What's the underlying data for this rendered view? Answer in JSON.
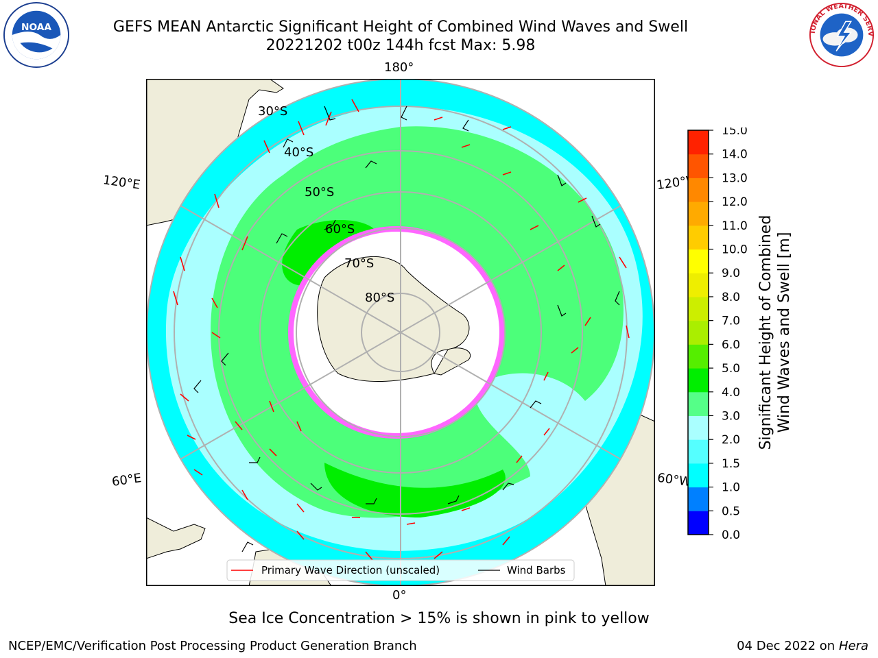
{
  "title": {
    "line1": "GEFS MEAN Antarctic Significant Height of Combined Wind Waves and Swell",
    "line2": "20221202 t00z 144h fcst   Max: 5.98"
  },
  "logos": {
    "noaa": {
      "icon": "noaa-logo",
      "text": "NOAA",
      "ring": "NATIONAL OCEANIC AND ATMOSPHERIC ADMINISTRATION · U.S. DEPARTMENT OF COMMERCE"
    },
    "nws": {
      "icon": "nws-logo",
      "ring": "NATIONAL WEATHER SERVICE"
    }
  },
  "map": {
    "projection": "south-polar-stereographic",
    "longitude_labels": [
      "180°",
      "120°E",
      "120°W",
      "60°E",
      "60°W",
      "0°"
    ],
    "latitude_labels": [
      "30°S",
      "40°S",
      "50°S",
      "60°S",
      "70°S",
      "80°S"
    ],
    "legend": {
      "primary_wave": "Primary Wave Direction (unscaled)",
      "wind_barbs": "Wind Barbs"
    },
    "colors": {
      "land": "#efedda",
      "ocean_low": "#00ffff",
      "ocean_mid": "#aaffff",
      "ocean_high": "#4cff7a",
      "ocean_peak": "#00ee00",
      "sea_ice": "#ff55ff",
      "arrows": "#ff0000",
      "barbs": "#000000"
    }
  },
  "colorbar": {
    "title_line1": "Significant Height of Combined",
    "title_line2": "Wind Waves and Swell [m]",
    "ticks": [
      "0.0",
      "0.5",
      "1.0",
      "1.5",
      "2.0",
      "3.0",
      "4.0",
      "5.0",
      "6.0",
      "7.0",
      "8.0",
      "9.0",
      "10.0",
      "11.0",
      "12.0",
      "13.0",
      "14.0",
      "15.0"
    ],
    "colors": [
      "#0000ff",
      "#0080ff",
      "#00ffff",
      "#55ffff",
      "#aaffff",
      "#55ff88",
      "#00ee00",
      "#55ee00",
      "#aaee00",
      "#ccee00",
      "#eeee00",
      "#ffff00",
      "#ffcc00",
      "#ffaa00",
      "#ff8800",
      "#ff5500",
      "#ff2200"
    ]
  },
  "note": "Sea Ice Concentration > 15% is shown in pink to yellow",
  "footer": {
    "left": "NCEP/EMC/Verification Post Processing Product Generation Branch",
    "right_date": "04 Dec 2022 on",
    "right_host": "Hera"
  }
}
